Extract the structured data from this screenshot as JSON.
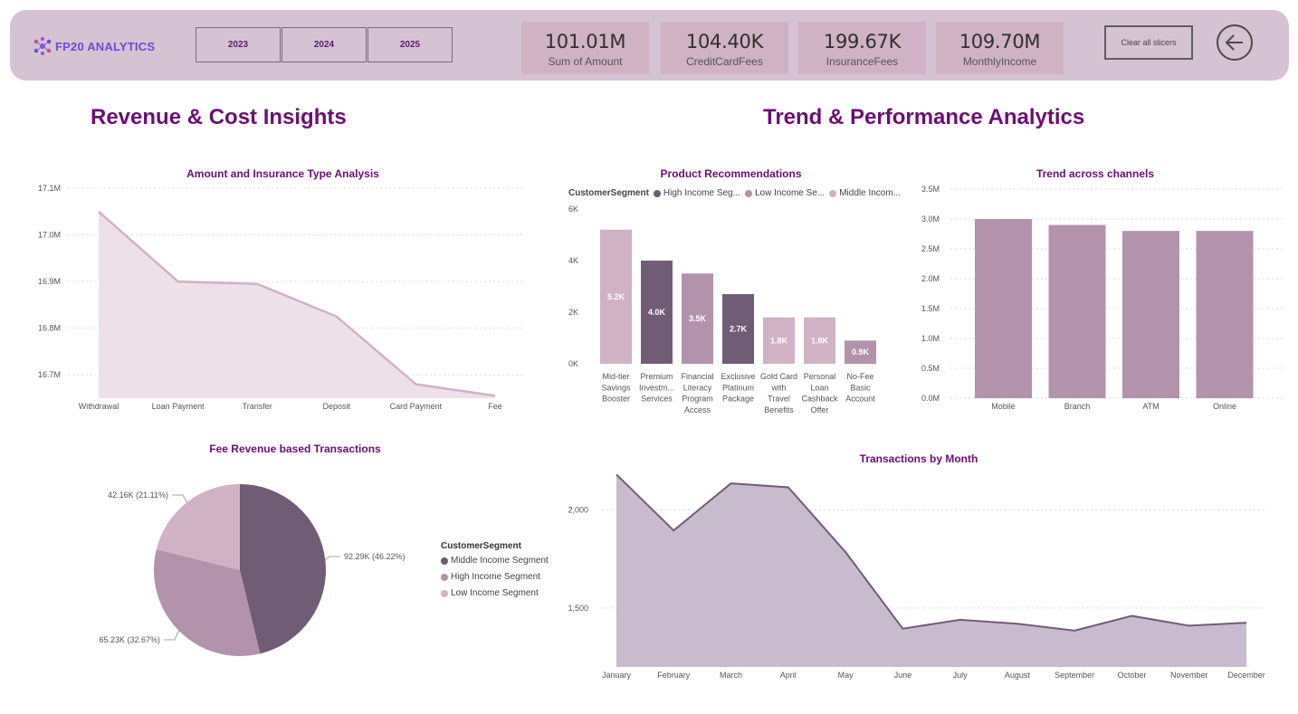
{
  "header": {
    "logo_text": "FP20 ANALYTICS",
    "years": [
      "2023",
      "2024",
      "2025"
    ],
    "kpis": [
      {
        "value": "101.01M",
        "label": "Sum of Amount"
      },
      {
        "value": "104.40K",
        "label": "CreditCardFees"
      },
      {
        "value": "199.67K",
        "label": "InsuranceFees"
      },
      {
        "value": "109.70M",
        "label": "MonthlyIncome"
      }
    ],
    "clear_label": "Clear all slicers",
    "back_icon": "arrow-left-circle-icon"
  },
  "sections": {
    "left_title": "Revenue & Cost Insights",
    "right_title": "Trend & Performance Analytics"
  },
  "colors": {
    "dark": "#715c76",
    "mid": "#b293ab",
    "light": "#cfb2c4",
    "title": "#6a0f72",
    "area1": "#ede0e8",
    "area1_line": "#cfb2c4",
    "area2": "#c8bbcd",
    "area2_line": "#715c76"
  },
  "chart_data": [
    {
      "id": "amount_type",
      "type": "area",
      "title": "Amount and Insurance Type Analysis",
      "categories": [
        "Withdrawal",
        "Loan Payment",
        "Transfer",
        "Deposit",
        "Card Payment",
        "Fee"
      ],
      "values": [
        17.05,
        16.9,
        16.895,
        16.825,
        16.68,
        16.655
      ],
      "ylim": [
        16.65,
        17.1
      ],
      "yticks": [
        16.7,
        16.8,
        16.9,
        17.0,
        17.1
      ],
      "ytick_labels": [
        "16.7M",
        "16.8M",
        "16.9M",
        "17.0M",
        "17.1M"
      ],
      "grid": true
    },
    {
      "id": "product_recs",
      "type": "bar",
      "title": "Product Recommendations",
      "legend_title": "CustomerSegment",
      "legend": [
        "High Income Seg...",
        "Low Income Se...",
        "Middle Incom..."
      ],
      "categories": [
        [
          "Mid-tier",
          "Savings",
          "Booster"
        ],
        [
          "Premium",
          "Investm...",
          "Services"
        ],
        [
          "Financial",
          "Literacy",
          "Program",
          "Access"
        ],
        [
          "Exclusive",
          "Platinum",
          "Package"
        ],
        [
          "Gold Card",
          "with",
          "Travel",
          "Benefits"
        ],
        [
          "Personal",
          "Loan",
          "Cashback",
          "Offer"
        ],
        [
          "No-Fee",
          "Basic",
          "Account"
        ]
      ],
      "values": [
        5.2,
        4.0,
        3.5,
        2.7,
        1.8,
        1.8,
        0.9
      ],
      "labels": [
        "5.2K",
        "4.0K",
        "3.5K",
        "2.7K",
        "1.8K",
        "1.8K",
        "0.9K"
      ],
      "segments": [
        "Low",
        "High",
        "Middle",
        "High",
        "Low",
        "Low",
        "Middle"
      ],
      "ylim": [
        0,
        6
      ],
      "yticks": [
        0,
        2,
        4,
        6
      ],
      "ytick_labels": [
        "0K",
        "2K",
        "4K",
        "6K"
      ]
    },
    {
      "id": "channels",
      "type": "bar",
      "title": "Trend across channels",
      "categories": [
        "Mobile",
        "Branch",
        "ATM",
        "Online"
      ],
      "values": [
        3.0,
        2.9,
        2.8,
        2.8
      ],
      "ylim": [
        0,
        3.5
      ],
      "yticks": [
        0,
        0.5,
        1.0,
        1.5,
        2.0,
        2.5,
        3.0,
        3.5
      ],
      "ytick_labels": [
        "0.0M",
        "0.5M",
        "1.0M",
        "1.5M",
        "2.0M",
        "2.5M",
        "3.0M",
        "3.5M"
      ],
      "grid": true
    },
    {
      "id": "fee_pie",
      "type": "pie",
      "title": "Fee Revenue based Transactions",
      "legend_title": "CustomerSegment",
      "slices": [
        {
          "name": "Middle Income Segment",
          "value": 46.22,
          "label": "92.29K (46.22%)"
        },
        {
          "name": "High Income Segment",
          "value": 32.67,
          "label": "65.23K (32.67%)"
        },
        {
          "name": "Low Income Segment",
          "value": 21.11,
          "label": "42.16K (21.11%)"
        }
      ]
    },
    {
      "id": "tx_month",
      "type": "area",
      "title": "Transactions by Month",
      "categories": [
        "January",
        "February",
        "March",
        "April",
        "May",
        "June",
        "July",
        "August",
        "September",
        "October",
        "November",
        "December"
      ],
      "values": [
        2180,
        1895,
        2135,
        2115,
        1785,
        1395,
        1440,
        1420,
        1385,
        1460,
        1410,
        1425
      ],
      "ylim": [
        1200,
        2200
      ],
      "yticks": [
        1500,
        2000
      ],
      "ytick_labels": [
        "1,500",
        "2,000"
      ],
      "grid": true
    }
  ]
}
